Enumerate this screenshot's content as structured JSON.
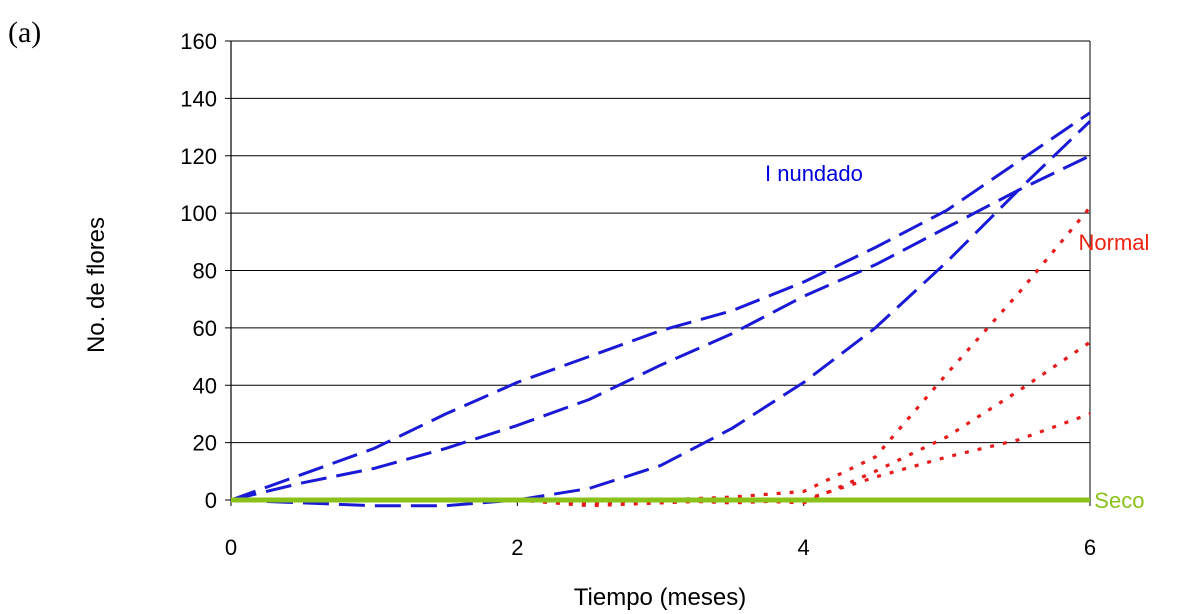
{
  "chart_data": {
    "type": "line",
    "panel_label": "(a)",
    "xlabel": "Tiempo (meses)",
    "ylabel": "No. de flores",
    "xlim": [
      0,
      6
    ],
    "ylim": [
      0,
      160
    ],
    "xticks": [
      0,
      2,
      4,
      6
    ],
    "yticks": [
      0,
      20,
      40,
      60,
      80,
      100,
      120,
      140,
      160
    ],
    "grid": "horizontal",
    "series_labels": [
      {
        "text": "I nundado",
        "color": "#0000dd",
        "at": [
          3.73,
          114
        ]
      },
      {
        "text": "Normal",
        "color": "#ee2211",
        "at": [
          5.92,
          90
        ]
      },
      {
        "text": "Seco",
        "color": "#8bc21a",
        "at": [
          6.03,
          0
        ]
      }
    ],
    "series": [
      {
        "group": "Inundado",
        "style": "dashed",
        "color": "#1a1ad6",
        "x": [
          0,
          0.5,
          1,
          1.5,
          2,
          2.5,
          3,
          3.5,
          4,
          4.5,
          5,
          5.5,
          6
        ],
        "y": [
          0,
          9,
          18,
          30,
          41,
          50,
          59,
          66,
          76,
          88,
          101,
          118,
          135
        ]
      },
      {
        "group": "Inundado",
        "style": "dashed",
        "color": "#1a1ad6",
        "x": [
          0,
          0.5,
          1,
          1.5,
          2,
          2.5,
          3,
          3.5,
          4,
          4.5,
          5,
          5.5,
          6
        ],
        "y": [
          0,
          6,
          11,
          18,
          26,
          35,
          47,
          58,
          71,
          82,
          95,
          108,
          120
        ]
      },
      {
        "group": "Inundado",
        "style": "dashed",
        "color": "#1a1ad6",
        "x": [
          0,
          0.5,
          1,
          1.5,
          2,
          2.5,
          3,
          3.5,
          4,
          4.5,
          5,
          5.5,
          6
        ],
        "y": [
          0,
          -1,
          -2,
          -2,
          0,
          4,
          12,
          25,
          41,
          60,
          83,
          108,
          132
        ]
      },
      {
        "group": "Normal",
        "style": "dotted",
        "color": "#e81a1a",
        "x": [
          0,
          0.5,
          1,
          1.5,
          2,
          2.5,
          3,
          3.5,
          4,
          4.5,
          5,
          5.5,
          6
        ],
        "y": [
          0,
          0,
          0,
          0,
          0,
          -1,
          0,
          1,
          3,
          15,
          44,
          72,
          102
        ]
      },
      {
        "group": "Normal",
        "style": "dotted",
        "color": "#e81a1a",
        "x": [
          0,
          0.5,
          1,
          1.5,
          2,
          2.5,
          3,
          3.5,
          4,
          4.5,
          5,
          5.5,
          6
        ],
        "y": [
          0,
          0,
          0,
          0,
          0,
          -2,
          -1,
          0,
          -1,
          10,
          22,
          38,
          55
        ]
      },
      {
        "group": "Normal",
        "style": "dotted",
        "color": "#e81a1a",
        "x": [
          0,
          0.5,
          1,
          1.5,
          2,
          2.5,
          3,
          3.5,
          4,
          4.5,
          5,
          5.5,
          6
        ],
        "y": [
          0,
          0,
          0,
          0,
          0,
          -1,
          0,
          -1,
          0,
          8,
          15,
          21,
          30
        ]
      },
      {
        "group": "Seco",
        "style": "solid",
        "color": "#8bc21a",
        "x": [
          0,
          6
        ],
        "y": [
          0,
          0
        ]
      }
    ]
  }
}
